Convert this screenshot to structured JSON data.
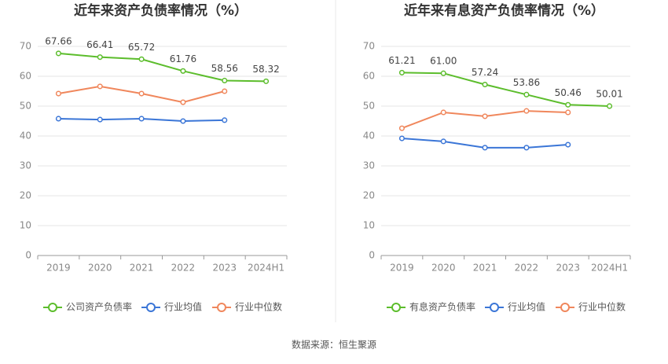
{
  "chart_data": [
    {
      "type": "line",
      "title": "近年来资产负债率情况（%）",
      "categories": [
        "2019",
        "2020",
        "2021",
        "2022",
        "2023",
        "2024H1"
      ],
      "ylim": [
        0,
        70
      ],
      "yticks": [
        0,
        10,
        20,
        30,
        40,
        50,
        60,
        70
      ],
      "grid": true,
      "series": [
        {
          "name": "公司资产负债率",
          "color": "#5cbd2c",
          "values": [
            67.66,
            66.41,
            65.72,
            61.76,
            58.56,
            58.32
          ]
        },
        {
          "name": "行业均值",
          "color": "#3b76d7",
          "values": [
            45.8,
            45.5,
            45.8,
            45.0,
            45.3,
            null
          ]
        },
        {
          "name": "行业中位数",
          "color": "#f0875c",
          "values": [
            54.2,
            56.6,
            54.2,
            51.3,
            55.0,
            null
          ]
        }
      ]
    },
    {
      "type": "line",
      "title": "近年来有息资产负债率情况（%）",
      "categories": [
        "2019",
        "2020",
        "2021",
        "2022",
        "2023",
        "2024H1"
      ],
      "ylim": [
        0,
        70
      ],
      "yticks": [
        0,
        10,
        20,
        30,
        40,
        50,
        60,
        70
      ],
      "grid": true,
      "series": [
        {
          "name": "有息资产负债率",
          "color": "#5cbd2c",
          "values": [
            61.21,
            61.0,
            57.24,
            53.86,
            50.46,
            50.01
          ],
          "value_labels": [
            "61.21",
            "61.00",
            "57.24",
            "53.86",
            "50.46",
            "50.01"
          ]
        },
        {
          "name": "行业均值",
          "color": "#3b76d7",
          "values": [
            39.2,
            38.2,
            36.1,
            36.1,
            37.1,
            null
          ]
        },
        {
          "name": "行业中位数",
          "color": "#f0875c",
          "values": [
            42.6,
            47.9,
            46.6,
            48.4,
            47.9,
            null
          ]
        }
      ]
    }
  ],
  "source": "数据来源：恒生聚源"
}
